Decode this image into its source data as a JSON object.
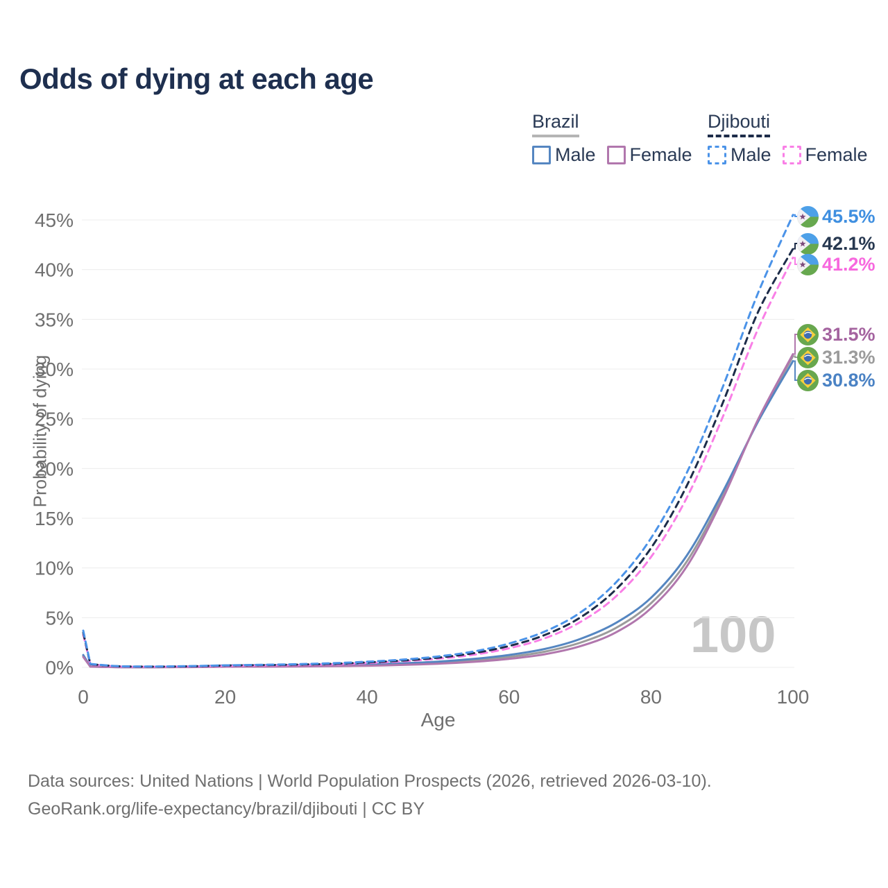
{
  "title": "Odds of dying at each age",
  "watermark": "100",
  "legend": {
    "groups": [
      {
        "label": "Brazil",
        "line_style": "solid",
        "underline_color": "#b5b5b5",
        "items": [
          {
            "label": "Male",
            "color": "#5586c1"
          },
          {
            "label": "Female",
            "color": "#b177ad"
          }
        ]
      },
      {
        "label": "Djibouti",
        "line_style": "dashed",
        "underline_color": "#1d2c49",
        "items": [
          {
            "label": "Male",
            "color": "#4b93e8"
          },
          {
            "label": "Female",
            "color": "#f97fe6"
          }
        ]
      }
    ]
  },
  "chart_data": {
    "type": "line",
    "title": "Odds of dying at each age",
    "xlabel": "Age",
    "ylabel": "Probability of dying",
    "xlim": [
      0,
      100
    ],
    "ylim": [
      0,
      45
    ],
    "x_ticks": [
      0,
      20,
      40,
      60,
      80,
      100
    ],
    "y_ticks": [
      0,
      5,
      10,
      15,
      20,
      25,
      30,
      35,
      40,
      45
    ],
    "grid": "horizontal",
    "legend_position": "top-right",
    "hovered_age": "100",
    "x": [
      0,
      1,
      5,
      10,
      15,
      20,
      25,
      30,
      35,
      40,
      45,
      50,
      55,
      60,
      65,
      70,
      75,
      80,
      85,
      90,
      95,
      100
    ],
    "series": [
      {
        "id": "br_both",
        "name": "Brazil Both sexes",
        "country": "Brazil",
        "sex": "both",
        "color": "#9b9b9b",
        "dash": false,
        "values": [
          1.15,
          0.08,
          0.025,
          0.018,
          0.05,
          0.13,
          0.14,
          0.16,
          0.19,
          0.24,
          0.33,
          0.47,
          0.7,
          1.05,
          1.58,
          2.48,
          3.95,
          6.45,
          10.6,
          17.1,
          24.7,
          31.3
        ]
      },
      {
        "id": "br_male",
        "name": "Brazil Male",
        "country": "Brazil",
        "sex": "male",
        "color": "#5586c1",
        "dash": false,
        "values": [
          1.25,
          0.09,
          0.03,
          0.02,
          0.08,
          0.2,
          0.22,
          0.24,
          0.27,
          0.32,
          0.42,
          0.58,
          0.85,
          1.25,
          1.85,
          2.85,
          4.45,
          7.0,
          11.2,
          17.5,
          24.6,
          30.8
        ]
      },
      {
        "id": "br_female",
        "name": "Brazil Female",
        "country": "Brazil",
        "sex": "female",
        "color": "#b177ad",
        "dash": false,
        "values": [
          1.05,
          0.07,
          0.02,
          0.015,
          0.03,
          0.06,
          0.07,
          0.09,
          0.12,
          0.17,
          0.25,
          0.37,
          0.56,
          0.86,
          1.32,
          2.12,
          3.5,
          5.95,
          10.1,
          16.8,
          24.8,
          31.5
        ]
      },
      {
        "id": "dj_female",
        "name": "Djibouti Female",
        "country": "Djibouti",
        "sex": "female",
        "color": "#f97fe6",
        "dash": true,
        "values": [
          3.3,
          0.3,
          0.1,
          0.07,
          0.1,
          0.15,
          0.19,
          0.23,
          0.31,
          0.43,
          0.61,
          0.87,
          1.27,
          1.92,
          2.92,
          4.55,
          7.1,
          11.1,
          17.0,
          25.0,
          33.9,
          41.2
        ]
      },
      {
        "id": "dj_both",
        "name": "Djibouti Both sexes",
        "country": "Djibouti",
        "sex": "both",
        "color": "#1d2c49",
        "dash": true,
        "values": [
          3.5,
          0.32,
          0.11,
          0.08,
          0.11,
          0.18,
          0.23,
          0.28,
          0.36,
          0.5,
          0.69,
          0.98,
          1.43,
          2.15,
          3.25,
          5.0,
          7.8,
          12.0,
          18.2,
          26.4,
          35.6,
          42.1
        ]
      },
      {
        "id": "dj_male",
        "name": "Djibouti Male",
        "country": "Djibouti",
        "sex": "male",
        "color": "#4b93e8",
        "dash": true,
        "values": [
          3.7,
          0.35,
          0.12,
          0.09,
          0.13,
          0.2,
          0.26,
          0.32,
          0.42,
          0.57,
          0.78,
          1.1,
          1.6,
          2.4,
          3.6,
          5.5,
          8.5,
          13.0,
          19.5,
          28.0,
          37.5,
          45.5
        ]
      }
    ],
    "end_labels": [
      {
        "series": "dj_male",
        "text": "45.5%",
        "value": 45.5,
        "color": "#3f8fe0",
        "flag": "djibouti"
      },
      {
        "series": "dj_both",
        "text": "42.1%",
        "value": 42.1,
        "color": "#273850",
        "flag": "djibouti"
      },
      {
        "series": "dj_female",
        "text": "41.2%",
        "value": 41.2,
        "color": "#f768de",
        "flag": "djibouti"
      },
      {
        "series": "br_female",
        "text": "31.5%",
        "value": 31.5,
        "color": "#a4639f",
        "flag": "brazil"
      },
      {
        "series": "br_both",
        "text": "31.3%",
        "value": 31.3,
        "color": "#9b9b9b",
        "flag": "brazil"
      },
      {
        "series": "br_male",
        "text": "30.8%",
        "value": 30.8,
        "color": "#4a82c4",
        "flag": "brazil"
      }
    ]
  },
  "footer": {
    "line1": "Data sources: United Nations | World Population Prospects (2026, retrieved 2026-03-10).",
    "line2": "GeoRank.org/life-expectancy/brazil/djibouti | CC BY"
  }
}
